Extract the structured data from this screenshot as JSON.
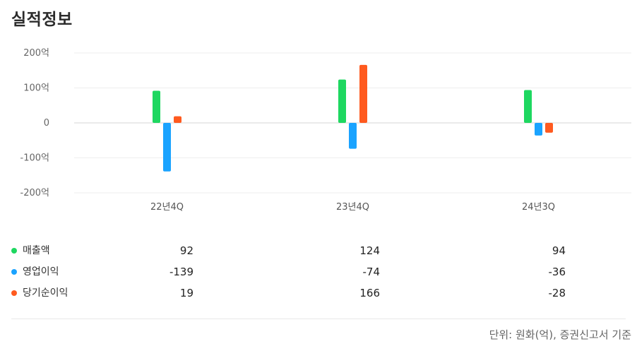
{
  "page": {
    "title": "실적정보",
    "note": "단위: 원화(억), 증권신고서 기준"
  },
  "chart_data": {
    "type": "bar",
    "categories": [
      "22년4Q",
      "23년4Q",
      "24년3Q"
    ],
    "series": [
      {
        "name": "매출액",
        "color": "#1ed760",
        "values": [
          92,
          124,
          94
        ]
      },
      {
        "name": "영업이익",
        "color": "#1aa3ff",
        "values": [
          -139,
          -74,
          -36
        ]
      },
      {
        "name": "당기순이익",
        "color": "#ff5a1f",
        "values": [
          19,
          166,
          -28
        ]
      }
    ],
    "yticks": [
      200,
      100,
      0,
      -100,
      -200
    ],
    "ytick_labels": [
      "200억",
      "100억",
      "0",
      "-100억",
      "-200억"
    ],
    "ylim": [
      -200,
      200
    ],
    "grid": true,
    "legend_position": "bottom-left"
  },
  "table": {
    "rows": [
      {
        "label": "매출액",
        "values": [
          "92",
          "124",
          "94"
        ]
      },
      {
        "label": "영업이익",
        "values": [
          "-139",
          "-74",
          "-36"
        ]
      },
      {
        "label": "당기순이익",
        "values": [
          "19",
          "166",
          "-28"
        ]
      }
    ]
  }
}
